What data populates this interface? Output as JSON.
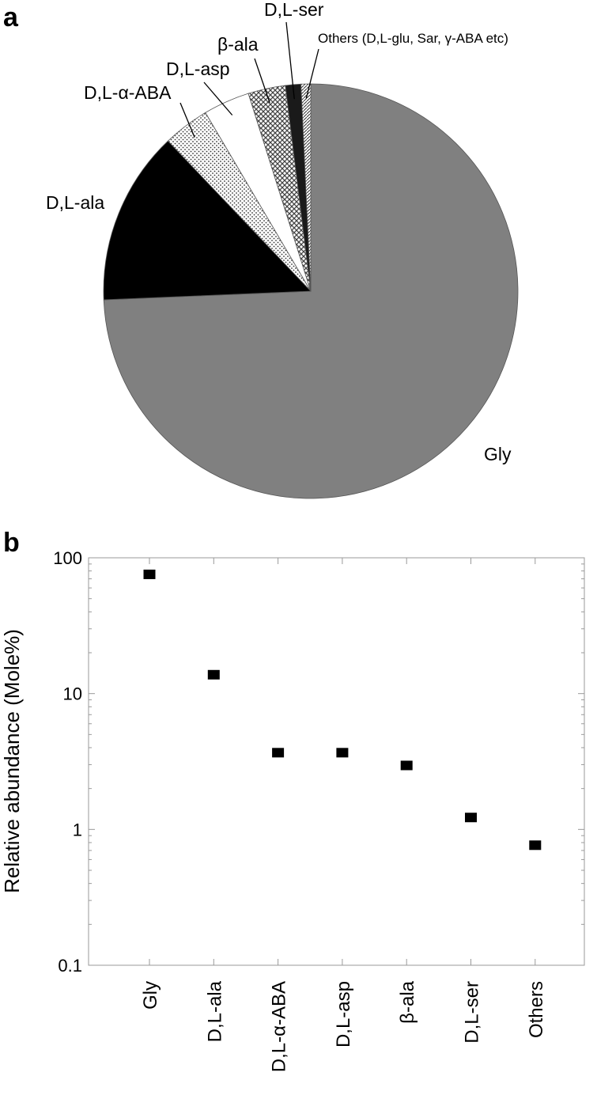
{
  "figure": {
    "panel_a_label": "a",
    "panel_b_label": "b"
  },
  "chart_data": [
    {
      "type": "pie",
      "panel": "a",
      "start_angle_deg": 0,
      "direction": "clockwise",
      "slices": [
        {
          "label": "Gly",
          "value": 74.0,
          "color": "#808080",
          "fill": "solid"
        },
        {
          "label": "D,L-ala",
          "value": 13.5,
          "color": "#000000",
          "fill": "solid"
        },
        {
          "label": "D,L-α-ABA",
          "value": 3.6,
          "color": "#ffffff",
          "fill": "dots"
        },
        {
          "label": "D,L-asp",
          "value": 3.6,
          "color": "#ffffff",
          "fill": "solid"
        },
        {
          "label": "β-ala",
          "value": 2.9,
          "color": "#ffffff",
          "fill": "crosshatch"
        },
        {
          "label": "D,L-ser",
          "value": 1.2,
          "color": "#1a1a1a",
          "fill": "solid"
        },
        {
          "label": "Others (D,L-glu, Sar, γ-ABA  etc)",
          "value": 0.75,
          "color": "#ffffff",
          "fill": "diagonal"
        }
      ]
    },
    {
      "type": "scatter",
      "panel": "b",
      "categories": [
        "Gly",
        "D,L-ala",
        "D,L-α-ABA",
        "D,L-asp",
        "β-ala",
        "D,L-ser",
        "Others"
      ],
      "values": [
        74,
        13.5,
        3.6,
        3.6,
        2.9,
        1.2,
        0.75
      ],
      "ylabel": "Relative abundance (Mole%)",
      "yscale": "log",
      "ylim": [
        0.1,
        100
      ],
      "yticks": [
        {
          "value": 100,
          "label": "100"
        },
        {
          "value": 10,
          "label": "10"
        },
        {
          "value": 1,
          "label": "1"
        },
        {
          "value": 0.1,
          "label": "0.1"
        }
      ],
      "marker": "square",
      "marker_color": "#000000",
      "grid": false,
      "legend": "none"
    }
  ]
}
